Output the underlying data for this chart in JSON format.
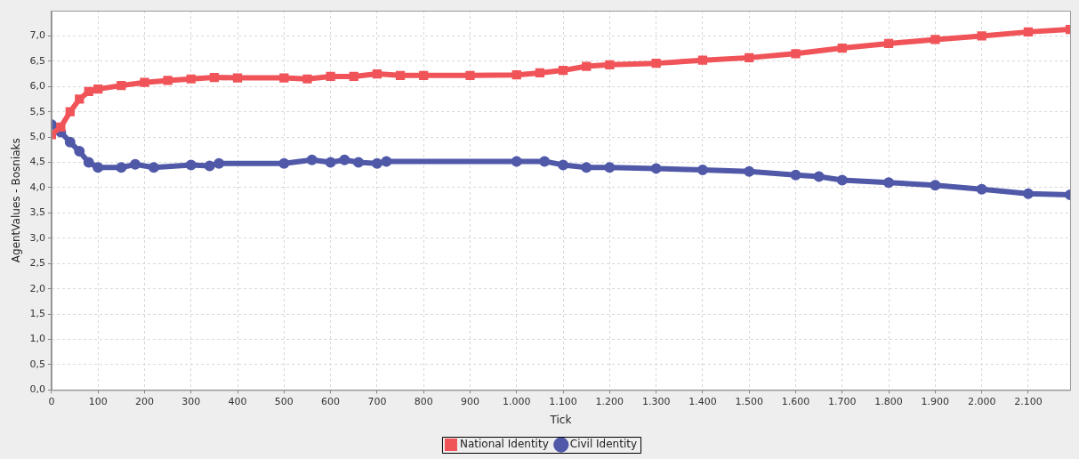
{
  "chart_data": {
    "type": "line",
    "xlabel": "Tick",
    "ylabel": "AgentValues - Bosniaks",
    "xlim": [
      0,
      2190
    ],
    "ylim": [
      0,
      7.5
    ],
    "xticks": [
      0,
      100,
      200,
      300,
      400,
      500,
      600,
      700,
      800,
      900,
      {
        "value": 1000,
        "label": "1.000"
      },
      {
        "value": 1100,
        "label": "1.100"
      },
      {
        "value": 1200,
        "label": "1.200"
      },
      {
        "value": 1300,
        "label": "1.300"
      },
      {
        "value": 1400,
        "label": "1.400"
      },
      {
        "value": 1500,
        "label": "1.500"
      },
      {
        "value": 1600,
        "label": "1.600"
      },
      {
        "value": 1700,
        "label": "1.700"
      },
      {
        "value": 1800,
        "label": "1.800"
      },
      {
        "value": 1900,
        "label": "1.900"
      },
      {
        "value": 2000,
        "label": "2.000"
      },
      {
        "value": 2100,
        "label": "2.100"
      }
    ],
    "yticks": [
      {
        "value": 0,
        "label": "0,0"
      },
      {
        "value": 0.5,
        "label": "0,5"
      },
      {
        "value": 1,
        "label": "1,0"
      },
      {
        "value": 1.5,
        "label": "1,5"
      },
      {
        "value": 2,
        "label": "2,0"
      },
      {
        "value": 2.5,
        "label": "2,5"
      },
      {
        "value": 3,
        "label": "3,0"
      },
      {
        "value": 3.5,
        "label": "3,5"
      },
      {
        "value": 4,
        "label": "4,0"
      },
      {
        "value": 4.5,
        "label": "4,5"
      },
      {
        "value": 5,
        "label": "5,0"
      },
      {
        "value": 5.5,
        "label": "5,5"
      },
      {
        "value": 6,
        "label": "6,0"
      },
      {
        "value": 6.5,
        "label": "6,5"
      },
      {
        "value": 7,
        "label": "7,0"
      }
    ],
    "grid": true,
    "legend": "bottom",
    "line_style": "solid",
    "series": [
      {
        "name": "National Identity",
        "color": "#f05459",
        "marker": "square",
        "x": [
          0,
          20,
          40,
          60,
          80,
          100,
          150,
          200,
          250,
          300,
          350,
          400,
          500,
          550,
          600,
          650,
          700,
          750,
          800,
          900,
          1000,
          1050,
          1100,
          1150,
          1200,
          1300,
          1400,
          1500,
          1600,
          1700,
          1800,
          1900,
          2000,
          2100,
          2190
        ],
        "values": [
          5.05,
          5.2,
          5.5,
          5.75,
          5.9,
          5.95,
          6.02,
          6.08,
          6.12,
          6.15,
          6.18,
          6.17,
          6.17,
          6.15,
          6.2,
          6.2,
          6.25,
          6.22,
          6.22,
          6.22,
          6.23,
          6.27,
          6.32,
          6.4,
          6.43,
          6.46,
          6.52,
          6.57,
          6.65,
          6.76,
          6.85,
          6.93,
          7.0,
          7.08,
          7.13
        ]
      },
      {
        "name": "Civil Identity",
        "color": "#5058a8",
        "marker": "circle",
        "x": [
          0,
          20,
          40,
          60,
          80,
          100,
          150,
          180,
          220,
          300,
          340,
          360,
          500,
          560,
          600,
          630,
          660,
          700,
          720,
          1000,
          1060,
          1100,
          1150,
          1200,
          1300,
          1400,
          1500,
          1600,
          1650,
          1700,
          1800,
          1900,
          2000,
          2100,
          2190
        ],
        "values": [
          5.25,
          5.1,
          4.9,
          4.72,
          4.5,
          4.4,
          4.4,
          4.46,
          4.4,
          4.45,
          4.43,
          4.48,
          4.48,
          4.55,
          4.5,
          4.55,
          4.5,
          4.48,
          4.52,
          4.52,
          4.52,
          4.45,
          4.4,
          4.4,
          4.38,
          4.35,
          4.32,
          4.25,
          4.22,
          4.15,
          4.1,
          4.05,
          3.97,
          3.88,
          3.86
        ]
      }
    ]
  }
}
